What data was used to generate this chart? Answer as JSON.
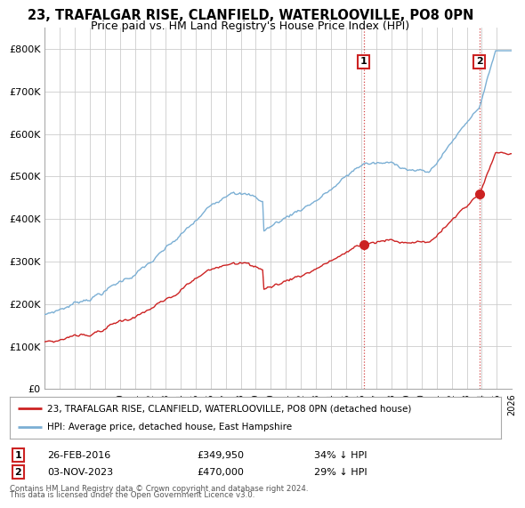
{
  "title1": "23, TRAFALGAR RISE, CLANFIELD, WATERLOOVILLE, PO8 0PN",
  "title2": "Price paid vs. HM Land Registry's House Price Index (HPI)",
  "ylim": [
    0,
    850000
  ],
  "yticks": [
    0,
    100000,
    200000,
    300000,
    400000,
    500000,
    600000,
    700000,
    800000
  ],
  "ytick_labels": [
    "£0",
    "£100K",
    "£200K",
    "£300K",
    "£400K",
    "£500K",
    "£600K",
    "£700K",
    "£800K"
  ],
  "hpi_color": "#7bafd4",
  "price_color": "#cc2222",
  "vline_color": "#cc2222",
  "marker1_date": 2016.15,
  "marker1_price": 349950,
  "marker2_date": 2023.84,
  "marker2_price": 470000,
  "legend_label1": "23, TRAFALGAR RISE, CLANFIELD, WATERLOOVILLE, PO8 0PN (detached house)",
  "legend_label2": "HPI: Average price, detached house, East Hampshire",
  "table_row1": [
    "1",
    "26-FEB-2016",
    "£349,950",
    "34% ↓ HPI"
  ],
  "table_row2": [
    "2",
    "03-NOV-2023",
    "£470,000",
    "29% ↓ HPI"
  ],
  "footnote1": "Contains HM Land Registry data © Crown copyright and database right 2024.",
  "footnote2": "This data is licensed under the Open Government Licence v3.0.",
  "bg_color": "#ffffff",
  "grid_color": "#cccccc",
  "xlim_start": 1995,
  "xlim_end": 2026
}
